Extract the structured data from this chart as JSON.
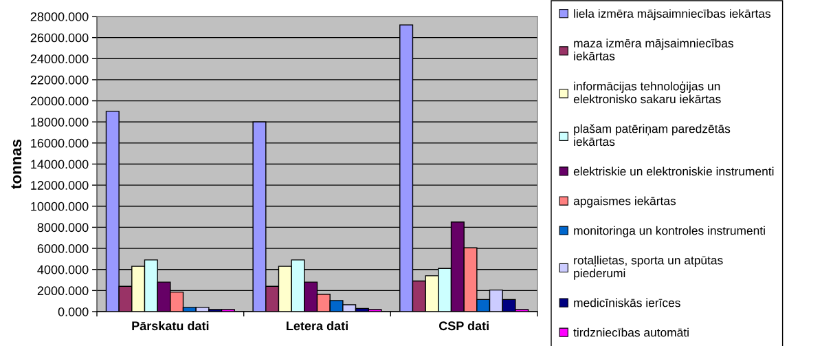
{
  "chart_data": {
    "type": "bar",
    "categories": [
      "Pārskatu dati",
      "Letera dati",
      "CSP dati"
    ],
    "ylabel": "tonnas",
    "ylim": [
      0,
      28000
    ],
    "yticks": [
      {
        "value": 0,
        "label": "0.000"
      },
      {
        "value": 2000,
        "label": "2000.000"
      },
      {
        "value": 4000,
        "label": "4000.000"
      },
      {
        "value": 6000,
        "label": "6000.000"
      },
      {
        "value": 8000,
        "label": "8000.000"
      },
      {
        "value": 10000,
        "label": "10000.000"
      },
      {
        "value": 12000,
        "label": "12000.000"
      },
      {
        "value": 14000,
        "label": "14000.000"
      },
      {
        "value": 16000,
        "label": "16000.000"
      },
      {
        "value": 18000,
        "label": "18000.000"
      },
      {
        "value": 20000,
        "label": "20000.000"
      },
      {
        "value": 22000,
        "label": "22000.000"
      },
      {
        "value": 24000,
        "label": "24000.000"
      },
      {
        "value": 26000,
        "label": "26000.000"
      },
      {
        "value": 28000,
        "label": "28000.000"
      }
    ],
    "grid": "y",
    "legend": "right",
    "series": [
      {
        "name": "liela izmēra mājsaimniecības iekārtas",
        "color": "#9999ff",
        "values": [
          19000,
          18000,
          27200
        ]
      },
      {
        "name": "maza izmēra mājsaimniecības\niekārtas",
        "color": "#993366",
        "values": [
          2400,
          2400,
          2900
        ]
      },
      {
        "name": "informācijas tehnoloģijas un\nelektronisko sakaru iekārtas",
        "color": "#ffffcc",
        "values": [
          4300,
          4300,
          3400
        ]
      },
      {
        "name": "plašam patēriņam paredzētās\niekārtas",
        "color": "#ccffff",
        "values": [
          4900,
          4900,
          4100
        ]
      },
      {
        "name": "elektriskie un elektroniskie instrumenti",
        "color": "#660066",
        "values": [
          2800,
          2800,
          8500
        ]
      },
      {
        "name": "apgaismes iekārtas",
        "color": "#ff8080",
        "values": [
          1850,
          1650,
          6050
        ]
      },
      {
        "name": "monitoringa un kontroles instrumenti",
        "color": "#0066cc",
        "values": [
          400,
          1050,
          1150
        ]
      },
      {
        "name": "rotaļlietas, sporta un atpūtas\npiederumi",
        "color": "#ccccff",
        "values": [
          400,
          650,
          2050
        ]
      },
      {
        "name": "medicīniskās ierīces",
        "color": "#000080",
        "values": [
          200,
          300,
          1150
        ]
      },
      {
        "name": "tirdzniecības automāti",
        "color": "#ff00ff",
        "values": [
          200,
          200,
          200
        ]
      }
    ]
  }
}
